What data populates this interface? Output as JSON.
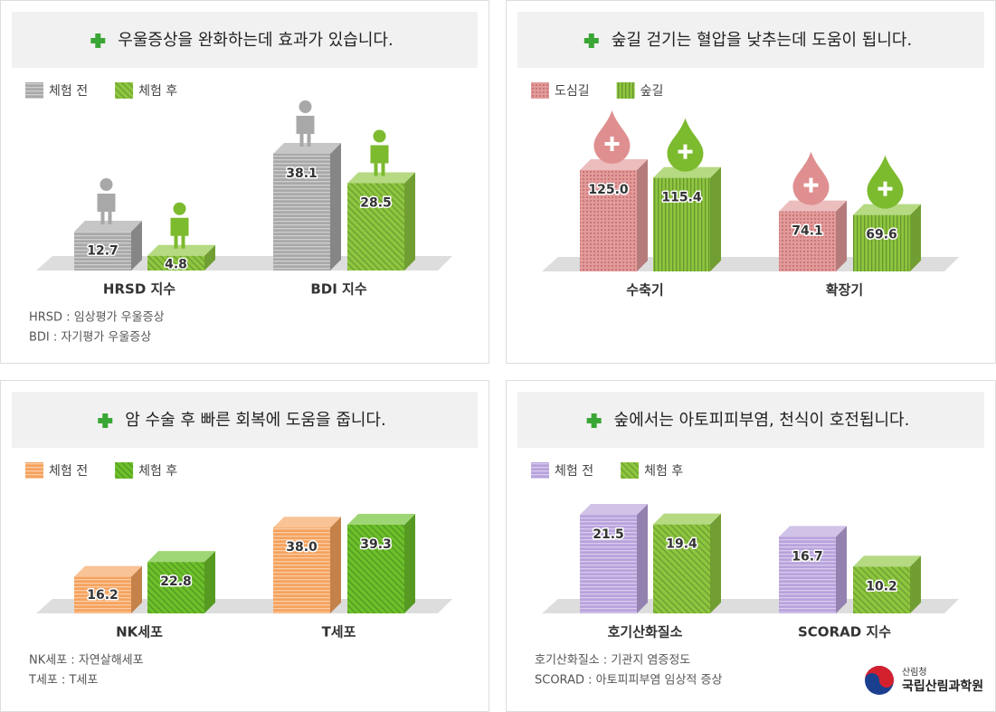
{
  "chart_data": [
    {
      "type": "bar",
      "title": "우울증상을 완화하는데 효과가 있습니다.",
      "categories": [
        "HRSD 지수",
        "BDI 지수"
      ],
      "series": [
        {
          "name": "체험 전",
          "color": "#a8a8a8",
          "values": [
            12.7,
            38.1
          ]
        },
        {
          "name": "체험 후",
          "color": "#8dc63f",
          "values": [
            4.8,
            28.5
          ]
        }
      ],
      "notes": [
        "HRSD : 임상평가 우울증상",
        "BDI : 자기평가 우울증상"
      ]
    },
    {
      "type": "bar",
      "title": "숲길 걷기는 혈압을 낮추는데 도움이 됩니다.",
      "categories": [
        "수축기",
        "확장기"
      ],
      "series": [
        {
          "name": "도심길",
          "color": "#e29a9a",
          "values": [
            125.0,
            74.1
          ],
          "value_labels": [
            "125.0",
            "74.1"
          ]
        },
        {
          "name": "숲길",
          "color": "#8dc63f",
          "values": [
            115.4,
            69.6
          ]
        }
      ]
    },
    {
      "type": "bar",
      "title": "암 수술 후 빠른 회복에 도움을 줍니다.",
      "categories": [
        "NK세포",
        "T세포"
      ],
      "series": [
        {
          "name": "체험 전",
          "color": "#f5a25d",
          "values": [
            16.2,
            38.0
          ],
          "value_labels": [
            "16.2",
            "38.0"
          ]
        },
        {
          "name": "체험 후",
          "color": "#6cc02a",
          "values": [
            22.8,
            39.3
          ]
        }
      ],
      "notes": [
        "NK세포 : 자연살해세포",
        "T세포 : T세포"
      ]
    },
    {
      "type": "bar",
      "title": "숲에서는 아토피피부염, 천식이 호전됩니다.",
      "categories": [
        "호기산화질소",
        "SCORAD 지수"
      ],
      "series": [
        {
          "name": "체험 전",
          "color": "#b8a2dc",
          "values": [
            21.5,
            16.7
          ]
        },
        {
          "name": "체험 후",
          "color": "#8dc63f",
          "values": [
            19.4,
            10.2
          ]
        }
      ],
      "notes": [
        "호기산화질소 : 기관지 염증정도",
        "SCORAD : 아토피피부염 임상적 증상"
      ]
    }
  ],
  "logo": {
    "ministry": "산림청",
    "institute": "국립산림과학원"
  }
}
